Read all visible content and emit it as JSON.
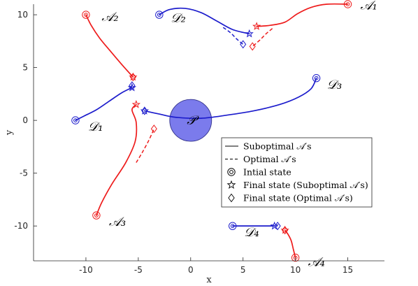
{
  "chart_data": {
    "type": "line",
    "title": "",
    "xlabel": "x",
    "ylabel": "y",
    "xlim": [
      -15,
      18.5
    ],
    "ylim": [
      -13.3,
      11
    ],
    "xticks": [
      -10,
      -5,
      0,
      5,
      10,
      15
    ],
    "yticks": [
      -10,
      -5,
      0,
      5,
      10
    ],
    "grid": false,
    "legend_position": "lower-right",
    "legend": [
      {
        "label": "Suboptimal 𝒜′s",
        "marker": "solid-line"
      },
      {
        "label": "Optimal 𝒜′s",
        "marker": "dashed-line"
      },
      {
        "label": "Intial state",
        "marker": "double-circle"
      },
      {
        "label": "Final state (Suboptimal 𝒜′s)",
        "marker": "star"
      },
      {
        "label": "Final state (Optimal 𝒜′s)",
        "marker": "diamond"
      }
    ],
    "colors": {
      "attacker": "#ee1c1c",
      "defender": "#1c1ccc",
      "protected_area": "#7b7bec",
      "protected_area_edge": "#33338a"
    },
    "protected_area": {
      "label": "𝒫",
      "center": [
        0,
        0
      ],
      "radius": 2
    },
    "series": [
      {
        "label": "𝒜₁",
        "role": "attacker",
        "label_at": [
          16.2,
          10.9
        ],
        "start": [
          15,
          11
        ],
        "suboptimal_final": [
          6.3,
          8.9
        ],
        "optimal_final": [
          5.9,
          7.0
        ],
        "suboptimal_path": [
          [
            15,
            11
          ],
          [
            13,
            11
          ],
          [
            11.5,
            10.7
          ],
          [
            10.2,
            10.1
          ],
          [
            9,
            9.3
          ],
          [
            7.6,
            9
          ],
          [
            6.3,
            8.9
          ]
        ],
        "optimal_path": [
          [
            7.8,
            8.7
          ],
          [
            7.2,
            8.2
          ],
          [
            6.6,
            7.6
          ],
          [
            5.9,
            7.0
          ]
        ]
      },
      {
        "label": "𝒜₂",
        "role": "attacker",
        "label_at": [
          -8.5,
          9.8
        ],
        "start": [
          -10,
          10
        ],
        "suboptimal_final": [
          -5.5,
          4.1
        ],
        "optimal_final": [
          -5.5,
          4.1
        ],
        "suboptimal_path": [
          [
            -10,
            10
          ],
          [
            -9.5,
            9
          ],
          [
            -8.7,
            7.8
          ],
          [
            -7.7,
            6.6
          ],
          [
            -6.5,
            5.2
          ],
          [
            -5.5,
            4.1
          ]
        ],
        "optimal_path": []
      },
      {
        "label": "𝒜₃",
        "role": "attacker",
        "label_at": [
          -7.8,
          -9.6
        ],
        "start": [
          -9,
          -9
        ],
        "suboptimal_final": [
          -5.2,
          1.5
        ],
        "optimal_final": [
          -3.5,
          -0.8
        ],
        "suboptimal_path": [
          [
            -9,
            -9
          ],
          [
            -8.5,
            -7.8
          ],
          [
            -7.5,
            -6
          ],
          [
            -6.2,
            -4
          ],
          [
            -5.3,
            -2
          ],
          [
            -5.2,
            -0.2
          ],
          [
            -5.6,
            1
          ],
          [
            -5.2,
            1.5
          ]
        ],
        "optimal_path": [
          [
            -5.2,
            -4
          ],
          [
            -4.6,
            -3
          ],
          [
            -4,
            -1.9
          ],
          [
            -3.5,
            -0.8
          ]
        ]
      },
      {
        "label": "𝒜₄",
        "role": "attacker",
        "label_at": [
          11.2,
          -13.4
        ],
        "start": [
          10,
          -13
        ],
        "suboptimal_final": [
          9,
          -10.4
        ],
        "optimal_final": [
          9,
          -10.4
        ],
        "suboptimal_path": [
          [
            10,
            -13
          ],
          [
            9.8,
            -12.2
          ],
          [
            9.6,
            -11.4
          ],
          [
            9.3,
            -10.8
          ],
          [
            9,
            -10.4
          ]
        ],
        "optimal_path": []
      },
      {
        "label": "𝒟₁",
        "role": "defender",
        "label_at": [
          -9.8,
          -0.6
        ],
        "start": [
          -11,
          0
        ],
        "suboptimal_final": [
          -5.6,
          3.1
        ],
        "optimal_final": [
          -5.6,
          3.3
        ],
        "suboptimal_path": [
          [
            -11,
            0
          ],
          [
            -10.2,
            0.4
          ],
          [
            -9,
            1
          ],
          [
            -7.8,
            1.8
          ],
          [
            -6.6,
            2.6
          ],
          [
            -5.6,
            3.1
          ]
        ],
        "optimal_path": [
          [
            -5.8,
            3.0
          ],
          [
            -5.6,
            3.3
          ]
        ]
      },
      {
        "label": "𝒟₂",
        "role": "defender",
        "label_at": [
          -1.9,
          9.7
        ],
        "start": [
          -3,
          10
        ],
        "suboptimal_final": [
          5.6,
          8.2
        ],
        "optimal_final": [
          5,
          7.2
        ],
        "suboptimal_path": [
          [
            -3,
            10
          ],
          [
            -2,
            10.5
          ],
          [
            -0.5,
            10.6
          ],
          [
            1,
            10.2
          ],
          [
            2.5,
            9.4
          ],
          [
            4,
            8.6
          ],
          [
            5.6,
            8.2
          ]
        ],
        "optimal_path": [
          [
            3.1,
            8.8
          ],
          [
            3.8,
            8.3
          ],
          [
            4.4,
            7.7
          ],
          [
            5,
            7.2
          ]
        ]
      },
      {
        "label": "𝒟₃",
        "role": "defender",
        "label_at": [
          13,
          3.4
        ],
        "start": [
          12,
          4
        ],
        "suboptimal_final": [
          -4.4,
          0.9
        ],
        "optimal_final": [
          -4.4,
          0.9
        ],
        "suboptimal_path": [
          [
            12,
            4
          ],
          [
            11.5,
            3
          ],
          [
            10.3,
            2.2
          ],
          [
            8.5,
            1.5
          ],
          [
            6,
            0.9
          ],
          [
            3.5,
            0.5
          ],
          [
            1,
            0.2
          ],
          [
            -1.5,
            0.3
          ],
          [
            -3,
            0.6
          ],
          [
            -4.4,
            0.9
          ]
        ],
        "optimal_path": []
      },
      {
        "label": "𝒟₄",
        "role": "defender",
        "label_at": [
          5.1,
          -10.6
        ],
        "start": [
          4,
          -10
        ],
        "suboptimal_final": [
          8,
          -10
        ],
        "optimal_final": [
          8.3,
          -10
        ],
        "suboptimal_path": [
          [
            4,
            -10
          ],
          [
            5.5,
            -10
          ],
          [
            7,
            -10
          ],
          [
            8,
            -10
          ]
        ],
        "optimal_path": [
          [
            7.6,
            -10
          ],
          [
            8.3,
            -10
          ]
        ]
      }
    ]
  }
}
